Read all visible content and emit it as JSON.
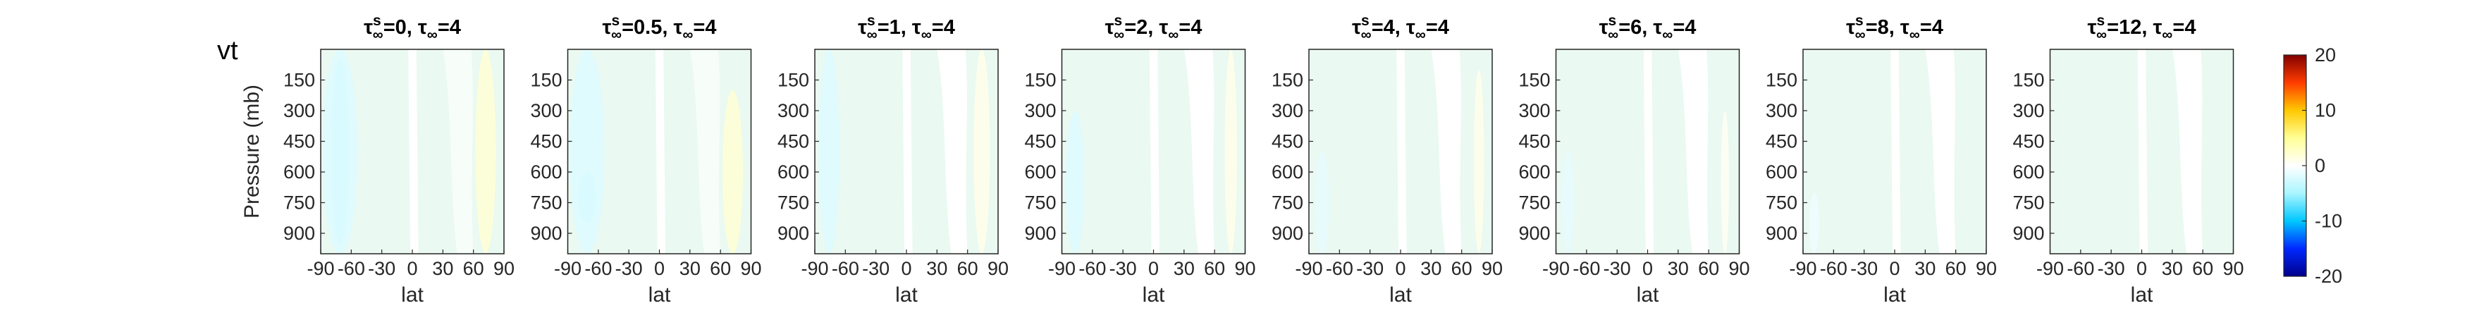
{
  "figure": {
    "variable_label": "vt"
  },
  "chart_data": {
    "type": "heatmap",
    "shared": {
      "xlabel": "lat",
      "ylabel": "Pressure (mb)",
      "x_ticks": [
        "-90",
        "-60",
        "-30",
        "0",
        "30",
        "60",
        "90"
      ],
      "x_tick_values": [
        -90,
        -60,
        -30,
        0,
        30,
        60,
        90
      ],
      "y_ticks": [
        "150",
        "300",
        "450",
        "600",
        "750",
        "900"
      ],
      "y_tick_values": [
        150,
        300,
        450,
        600,
        750,
        900
      ],
      "xlim": [
        -90,
        90
      ],
      "ylim": [
        0,
        1000
      ],
      "y_reversed": true
    },
    "panels": [
      {
        "tau_s": "0",
        "tau_inf": "4",
        "field": [
          {
            "lat_min": -80,
            "lat_max": -62,
            "p_min": 50,
            "p_max": 950,
            "value": -4
          },
          {
            "lat_min": -88,
            "lat_max": -54,
            "p_min": 0,
            "p_max": 1000,
            "value": -2
          },
          {
            "lat_min": 62,
            "lat_max": 82,
            "p_min": 0,
            "p_max": 1000,
            "value": 2
          }
        ]
      },
      {
        "tau_s": "0.5",
        "tau_inf": "4",
        "field": [
          {
            "lat_min": -80,
            "lat_max": -62,
            "p_min": 600,
            "p_max": 850,
            "value": -4
          },
          {
            "lat_min": -88,
            "lat_max": -54,
            "p_min": 0,
            "p_max": 1000,
            "value": -2
          },
          {
            "lat_min": 62,
            "lat_max": 82,
            "p_min": 200,
            "p_max": 1000,
            "value": 2
          }
        ]
      },
      {
        "tau_s": "1",
        "tau_inf": "4",
        "field": [
          {
            "lat_min": -86,
            "lat_max": -66,
            "p_min": 0,
            "p_max": 1000,
            "value": -2
          },
          {
            "lat_min": 66,
            "lat_max": 82,
            "p_min": 0,
            "p_max": 1000,
            "value": 1
          }
        ]
      },
      {
        "tau_s": "2",
        "tau_inf": "4",
        "field": [
          {
            "lat_min": -86,
            "lat_max": -68,
            "p_min": 300,
            "p_max": 1000,
            "value": -2
          },
          {
            "lat_min": 70,
            "lat_max": 82,
            "p_min": 0,
            "p_max": 1000,
            "value": 1
          }
        ]
      },
      {
        "tau_s": "4",
        "tau_inf": "4",
        "field": [
          {
            "lat_min": -84,
            "lat_max": -70,
            "p_min": 500,
            "p_max": 1000,
            "value": -1.5
          },
          {
            "lat_min": 72,
            "lat_max": 82,
            "p_min": 100,
            "p_max": 1000,
            "value": 1
          }
        ]
      },
      {
        "tau_s": "6",
        "tau_inf": "4",
        "field": [
          {
            "lat_min": -84,
            "lat_max": -72,
            "p_min": 500,
            "p_max": 1000,
            "value": -1.5
          },
          {
            "lat_min": 72,
            "lat_max": 80,
            "p_min": 300,
            "p_max": 1000,
            "value": 0.5
          }
        ]
      },
      {
        "tau_s": "8",
        "tau_inf": "4",
        "field": [
          {
            "lat_min": -84,
            "lat_max": -74,
            "p_min": 700,
            "p_max": 1000,
            "value": -1
          }
        ]
      },
      {
        "tau_s": "12",
        "tau_inf": "4",
        "field": []
      }
    ],
    "colorbar": {
      "range": [
        -20,
        20
      ],
      "ticks": [
        "20",
        "10",
        "0",
        "-10",
        "-20"
      ],
      "tick_values": [
        20,
        10,
        0,
        -10,
        -20
      ],
      "colormap": "jet-like (blue-cyan-white-yellow-red)"
    }
  }
}
